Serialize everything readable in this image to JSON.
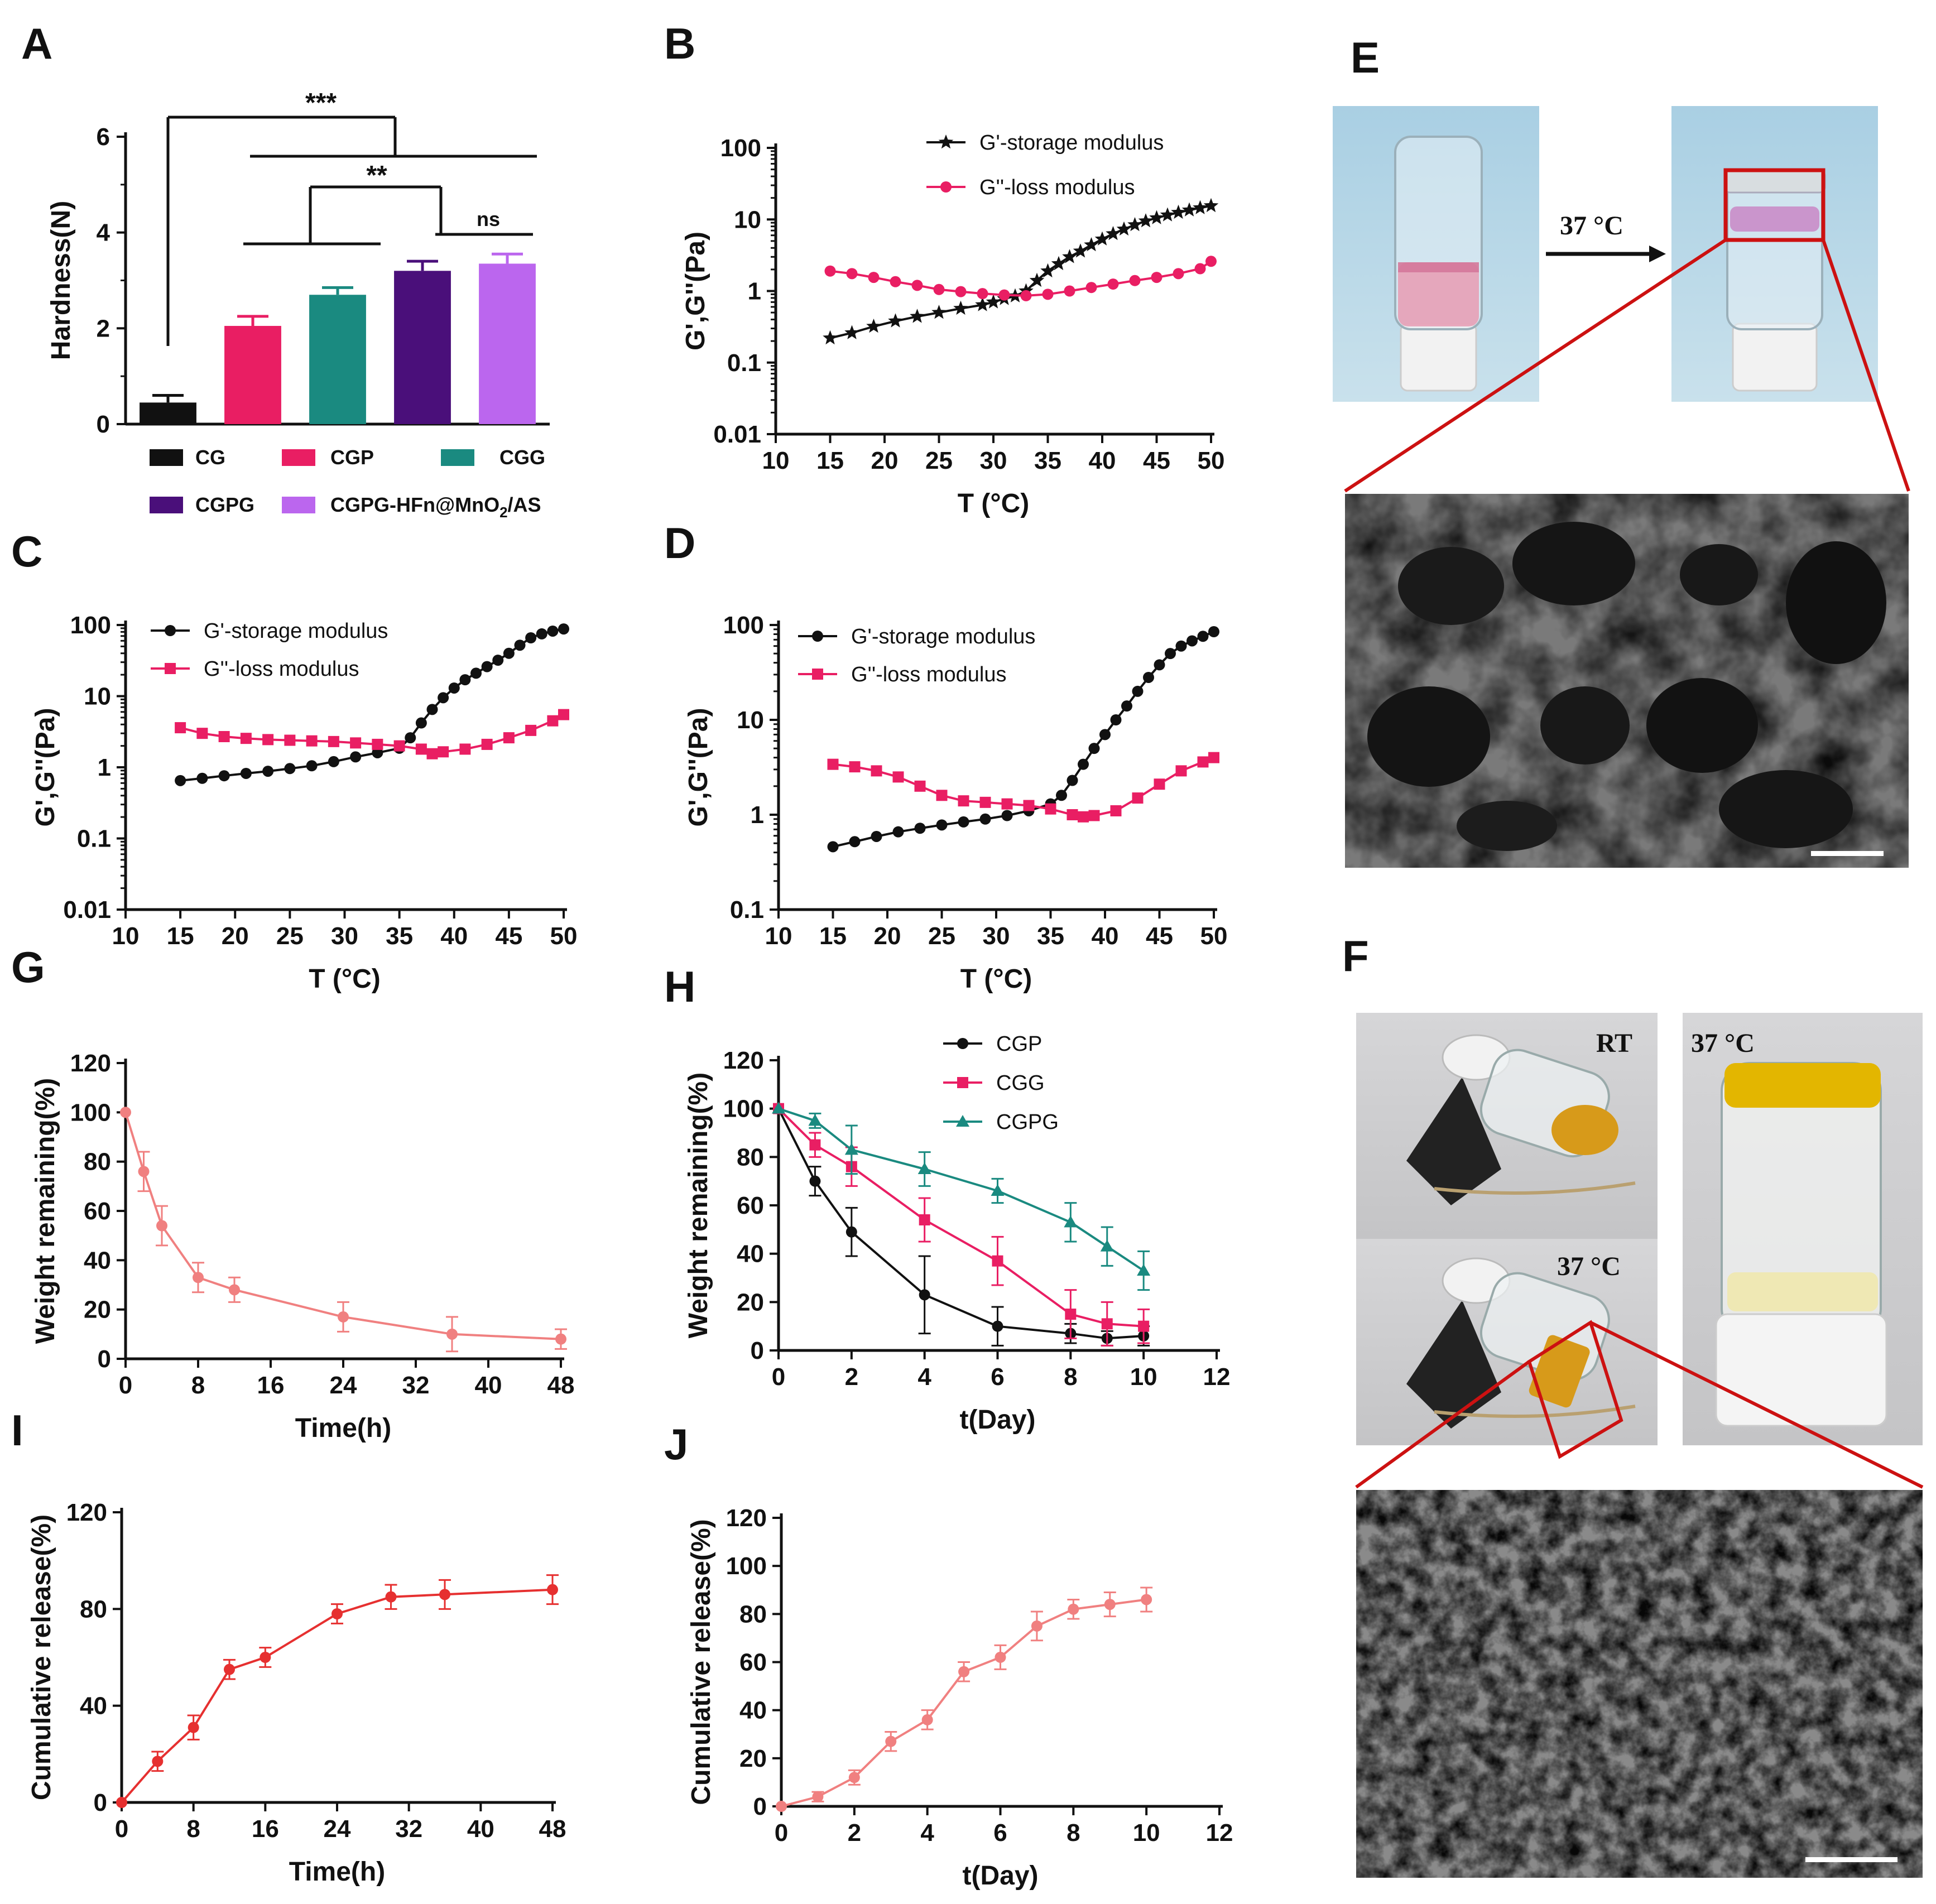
{
  "panel_labels": {
    "A": "A",
    "B": "B",
    "C": "C",
    "D": "D",
    "E": "E",
    "F": "F",
    "G": "G",
    "H": "H",
    "I": "I",
    "J": "J"
  },
  "colors": {
    "black": "#111111",
    "pink": "#e91e63",
    "teal": "#1a8a80",
    "purple": "#4a0f7a",
    "lilac": "#bb66ee",
    "salmon": "#f08080",
    "red": "#e63030",
    "red_frame": "#cc1111"
  },
  "photos": {
    "E": {
      "arrow_label": "37 °C"
    },
    "F": {
      "rt_label": "RT",
      "label_37a": "37 °C",
      "label_37b": "37 °C"
    }
  },
  "chart_data": [
    {
      "id": "A",
      "type": "bar",
      "ylabel": "Hardness(N)",
      "ylim": [
        0,
        6
      ],
      "yticks": [
        "0",
        "2",
        "4",
        "6"
      ],
      "categories": [
        "CG",
        "CGP",
        "CGG",
        "CGPG",
        "CGPG-HFn@MnO2/AS"
      ],
      "values": [
        0.45,
        2.05,
        2.7,
        3.2,
        3.35
      ],
      "errors": [
        0.15,
        0.2,
        0.15,
        0.2,
        0.2
      ],
      "legend": [
        {
          "label": "CG",
          "color": "#111111"
        },
        {
          "label": "CGP",
          "color": "#e91e63"
        },
        {
          "label": "CGG",
          "color": "#1a8a80"
        },
        {
          "label": "CGPG",
          "color": "#4a0f7a"
        },
        {
          "label_main": "CGPG-HFn@MnO",
          "label_sub": "2",
          "label_tail": "/AS",
          "color": "#bb66ee"
        }
      ],
      "significance": [
        "***",
        "**",
        "ns"
      ]
    },
    {
      "id": "B",
      "type": "line",
      "scale": "log",
      "xlabel": "T (°C)",
      "ylabel": "G',G''(Pa)",
      "xlim": [
        10,
        50
      ],
      "ylim": [
        0.01,
        100
      ],
      "xticks": [
        "10",
        "15",
        "20",
        "25",
        "30",
        "35",
        "40",
        "45",
        "50"
      ],
      "yticks": [
        "0.01",
        "0.1",
        "1",
        "10",
        "100"
      ],
      "series": [
        {
          "name": "G'-storage modulus",
          "marker": "star",
          "color": "#111111",
          "x": [
            15,
            17,
            19,
            21,
            23,
            25,
            27,
            29,
            30,
            31,
            32,
            33,
            34,
            35,
            36,
            37,
            38,
            39,
            40,
            41,
            42,
            43,
            44,
            45,
            46,
            47,
            48,
            49,
            50
          ],
          "y": [
            0.22,
            0.26,
            0.32,
            0.38,
            0.44,
            0.5,
            0.57,
            0.64,
            0.7,
            0.78,
            0.85,
            1.0,
            1.4,
            1.9,
            2.4,
            3.0,
            3.6,
            4.4,
            5.3,
            6.3,
            7.3,
            8.4,
            9.5,
            10.5,
            11.5,
            12.5,
            13.5,
            14.5,
            15.5
          ]
        },
        {
          "name": "G''-loss modulus",
          "marker": "circle",
          "color": "#e91e63",
          "x": [
            15,
            17,
            19,
            21,
            23,
            25,
            27,
            29,
            31,
            33,
            35,
            37,
            39,
            41,
            43,
            45,
            47,
            49,
            50
          ],
          "y": [
            1.9,
            1.75,
            1.55,
            1.35,
            1.2,
            1.05,
            0.98,
            0.92,
            0.88,
            0.86,
            0.9,
            1.0,
            1.12,
            1.25,
            1.4,
            1.55,
            1.75,
            2.05,
            2.6
          ]
        }
      ]
    },
    {
      "id": "C",
      "type": "line",
      "scale": "log",
      "xlabel": "T (°C)",
      "ylabel": "G',G''(Pa)",
      "xlim": [
        10,
        50
      ],
      "ylim": [
        0.01,
        100
      ],
      "xticks": [
        "10",
        "15",
        "20",
        "25",
        "30",
        "35",
        "40",
        "45",
        "50"
      ],
      "yticks": [
        "0.01",
        "0.1",
        "1",
        "10",
        "100"
      ],
      "series": [
        {
          "name": "G'-storage modulus",
          "marker": "circle",
          "color": "#111111",
          "x": [
            15,
            17,
            19,
            21,
            23,
            25,
            27,
            29,
            31,
            33,
            35,
            36,
            37,
            38,
            39,
            40,
            41,
            42,
            43,
            44,
            45,
            46,
            47,
            48,
            49,
            50
          ],
          "y": [
            0.65,
            0.7,
            0.76,
            0.82,
            0.88,
            0.96,
            1.05,
            1.2,
            1.4,
            1.6,
            1.85,
            2.6,
            4.2,
            6.5,
            9.5,
            13,
            17,
            21,
            26,
            32,
            40,
            52,
            66,
            75,
            82,
            88
          ]
        },
        {
          "name": "G''-loss modulus",
          "marker": "square",
          "color": "#e91e63",
          "x": [
            15,
            17,
            19,
            21,
            23,
            25,
            27,
            29,
            31,
            33,
            35,
            37,
            38,
            39,
            41,
            43,
            45,
            47,
            49,
            50
          ],
          "y": [
            3.6,
            3.0,
            2.7,
            2.55,
            2.45,
            2.4,
            2.35,
            2.3,
            2.2,
            2.1,
            2.0,
            1.8,
            1.55,
            1.65,
            1.8,
            2.1,
            2.6,
            3.3,
            4.5,
            5.5
          ]
        }
      ]
    },
    {
      "id": "D",
      "type": "line",
      "scale": "log",
      "xlabel": "T (°C)",
      "ylabel": "G',G''(Pa)",
      "xlim": [
        10,
        50
      ],
      "ylim": [
        0.1,
        100
      ],
      "xticks": [
        "10",
        "15",
        "20",
        "25",
        "30",
        "35",
        "40",
        "45",
        "50"
      ],
      "yticks": [
        "0.1",
        "1",
        "10",
        "100"
      ],
      "series": [
        {
          "name": "G'-storage modulus",
          "marker": "circle",
          "color": "#111111",
          "x": [
            15,
            17,
            19,
            21,
            23,
            25,
            27,
            29,
            31,
            33,
            35,
            36,
            37,
            38,
            39,
            40,
            41,
            42,
            43,
            44,
            45,
            46,
            47,
            48,
            49,
            50
          ],
          "y": [
            0.46,
            0.52,
            0.59,
            0.66,
            0.72,
            0.78,
            0.84,
            0.9,
            0.98,
            1.1,
            1.3,
            1.6,
            2.3,
            3.4,
            5.0,
            7.0,
            10,
            14,
            20,
            28,
            38,
            50,
            60,
            68,
            76,
            85
          ]
        },
        {
          "name": "G''-loss modulus",
          "marker": "square",
          "color": "#e91e63",
          "x": [
            15,
            17,
            19,
            21,
            23,
            25,
            27,
            29,
            31,
            33,
            35,
            37,
            38,
            39,
            41,
            43,
            45,
            47,
            49,
            50
          ],
          "y": [
            3.4,
            3.2,
            2.9,
            2.5,
            2.0,
            1.6,
            1.4,
            1.35,
            1.3,
            1.25,
            1.15,
            1.0,
            0.95,
            0.98,
            1.1,
            1.5,
            2.1,
            2.9,
            3.6,
            4.0
          ]
        }
      ]
    },
    {
      "id": "G",
      "type": "line",
      "xlabel": "Time(h)",
      "ylabel": "Weight remaining(%)",
      "xlim": [
        0,
        48
      ],
      "ylim": [
        0,
        120
      ],
      "xticks": [
        "0",
        "8",
        "16",
        "24",
        "32",
        "40",
        "48"
      ],
      "yticks": [
        "0",
        "20",
        "40",
        "60",
        "80",
        "100",
        "120"
      ],
      "series": [
        {
          "name": "Weight remaining",
          "marker": "circle",
          "color": "#f08080",
          "x": [
            0,
            2,
            4,
            8,
            12,
            24,
            36,
            48
          ],
          "y": [
            100,
            76,
            54,
            33,
            28,
            17,
            10,
            8
          ],
          "err": [
            0,
            8,
            8,
            6,
            5,
            6,
            7,
            4
          ]
        }
      ]
    },
    {
      "id": "H",
      "type": "line",
      "xlabel": "t(Day)",
      "ylabel": "Weight remaining(%)",
      "xlim": [
        0,
        12
      ],
      "ylim": [
        0,
        120
      ],
      "xticks": [
        "0",
        "2",
        "4",
        "6",
        "8",
        "10",
        "12"
      ],
      "yticks": [
        "0",
        "20",
        "40",
        "60",
        "80",
        "100",
        "120"
      ],
      "series": [
        {
          "name": "CGP",
          "marker": "circle",
          "color": "#111111",
          "x": [
            0,
            1,
            2,
            4,
            6,
            8,
            9,
            10
          ],
          "y": [
            100,
            70,
            49,
            23,
            10,
            7,
            5,
            6
          ],
          "err": [
            0,
            6,
            10,
            16,
            8,
            4,
            3,
            4
          ]
        },
        {
          "name": "CGG",
          "marker": "square",
          "color": "#e91e63",
          "x": [
            0,
            1,
            2,
            4,
            6,
            8,
            9,
            10
          ],
          "y": [
            100,
            85,
            76,
            54,
            37,
            15,
            11,
            10
          ],
          "err": [
            0,
            5,
            8,
            9,
            10,
            10,
            9,
            7
          ]
        },
        {
          "name": "CGPG",
          "marker": "triangle",
          "color": "#1a8a80",
          "x": [
            0,
            1,
            2,
            4,
            6,
            8,
            9,
            10
          ],
          "y": [
            100,
            95,
            83,
            75,
            66,
            53,
            43,
            33
          ],
          "err": [
            0,
            3,
            10,
            7,
            5,
            8,
            8,
            8
          ]
        }
      ]
    },
    {
      "id": "I",
      "type": "line",
      "xlabel": "Time(h)",
      "ylabel": "Cumulative release(%)",
      "xlim": [
        0,
        48
      ],
      "ylim": [
        0,
        120
      ],
      "xticks": [
        "0",
        "8",
        "16",
        "24",
        "32",
        "40",
        "48"
      ],
      "yticks": [
        "0",
        "40",
        "80",
        "120"
      ],
      "series": [
        {
          "name": "Cumulative release",
          "marker": "circle",
          "color": "#e63030",
          "x": [
            0,
            4,
            8,
            12,
            16,
            24,
            30,
            36,
            48
          ],
          "y": [
            0,
            17,
            31,
            55,
            60,
            78,
            85,
            86,
            88
          ],
          "err": [
            0,
            4,
            5,
            4,
            4,
            4,
            5,
            6,
            6
          ]
        }
      ]
    },
    {
      "id": "J",
      "type": "line",
      "xlabel": "t(Day)",
      "ylabel": "Cumulative release(%)",
      "xlim": [
        0,
        12
      ],
      "ylim": [
        0,
        120
      ],
      "xticks": [
        "0",
        "2",
        "4",
        "6",
        "8",
        "10",
        "12"
      ],
      "yticks": [
        "0",
        "20",
        "40",
        "60",
        "80",
        "100",
        "120"
      ],
      "series": [
        {
          "name": "Cumulative release",
          "marker": "circle",
          "color": "#f08080",
          "x": [
            0,
            1,
            2,
            3,
            4,
            5,
            6,
            7,
            8,
            9,
            10
          ],
          "y": [
            0,
            4,
            12,
            27,
            36,
            56,
            62,
            75,
            82,
            84,
            86
          ],
          "err": [
            0,
            2,
            3,
            4,
            4,
            4,
            5,
            6,
            4,
            5,
            5
          ]
        }
      ]
    }
  ]
}
